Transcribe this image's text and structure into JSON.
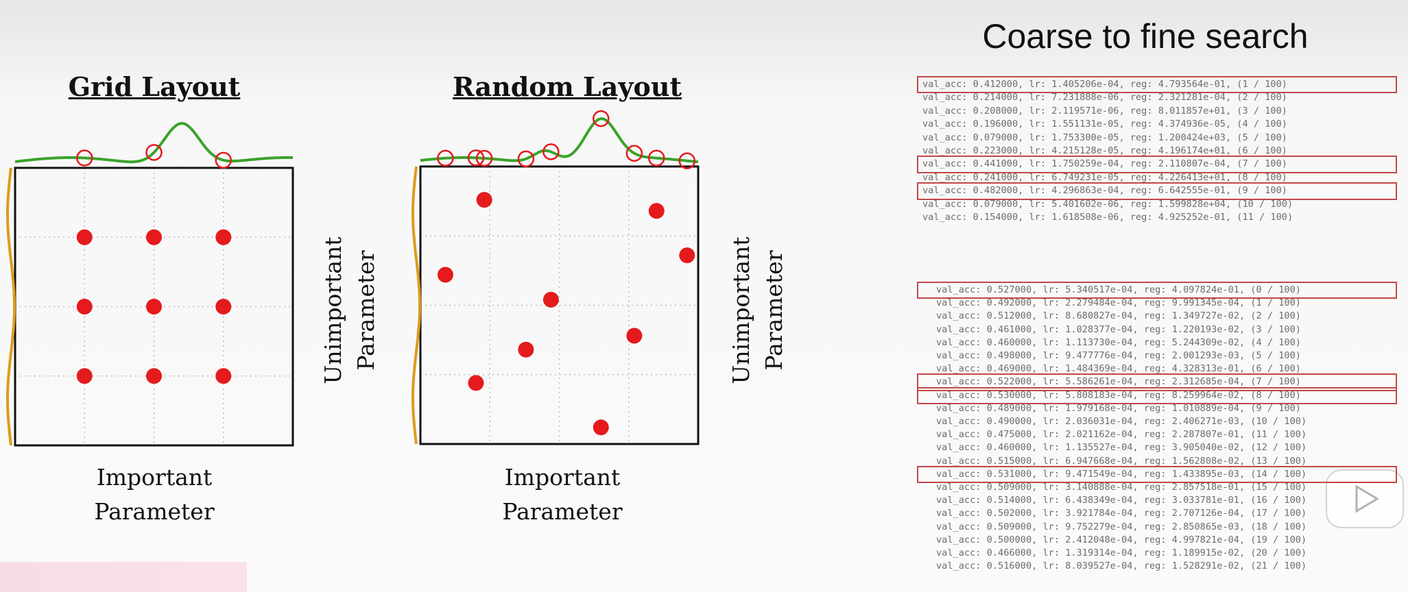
{
  "grid_plot": {
    "title": "Grid Layout",
    "xlabel_line1": "Important",
    "xlabel_line2": "Parameter",
    "ylabel_line1": "Unimportant",
    "ylabel_line2": "Parameter",
    "points": [
      [
        0.25,
        0.25
      ],
      [
        0.5,
        0.25
      ],
      [
        0.75,
        0.25
      ],
      [
        0.25,
        0.5
      ],
      [
        0.5,
        0.5
      ],
      [
        0.75,
        0.5
      ],
      [
        0.25,
        0.75
      ],
      [
        0.5,
        0.75
      ],
      [
        0.75,
        0.75
      ]
    ],
    "top_marks": [
      0.25,
      0.5,
      0.75
    ]
  },
  "random_plot": {
    "title": "Random Layout",
    "xlabel_line1": "Important",
    "xlabel_line2": "Parameter",
    "ylabel_line1": "Unimportant",
    "ylabel_line2": "Parameter",
    "points": [
      [
        0.23,
        0.12
      ],
      [
        0.85,
        0.16
      ],
      [
        0.09,
        0.39
      ],
      [
        0.96,
        0.32
      ],
      [
        0.47,
        0.48
      ],
      [
        0.38,
        0.66
      ],
      [
        0.77,
        0.61
      ],
      [
        0.2,
        0.78
      ],
      [
        0.65,
        0.94
      ]
    ],
    "top_marks": [
      0.09,
      0.2,
      0.23,
      0.38,
      0.47,
      0.65,
      0.77,
      0.85,
      0.96
    ]
  },
  "colors": {
    "point": "#e41a1c",
    "important_curve": "#3aa32a",
    "unimportant_curve": "#e09a1c",
    "highlight": "#c24848"
  },
  "right_panel": {
    "title": "Coarse to fine search",
    "coarse_log": [
      "val_acc: 0.412000, lr: 1.405206e-04, reg: 4.793564e-01, (1 / 100)",
      "val_acc: 0.214000, lr: 7.231888e-06, reg: 2.321281e-04, (2 / 100)",
      "val_acc: 0.208000, lr: 2.119571e-06, reg: 8.011857e+01, (3 / 100)",
      "val_acc: 0.196000, lr: 1.551131e-05, reg: 4.374936e-05, (4 / 100)",
      "val_acc: 0.079000, lr: 1.753300e-05, reg: 1.200424e+03, (5 / 100)",
      "val_acc: 0.223000, lr: 4.215128e-05, reg: 4.196174e+01, (6 / 100)",
      "val_acc: 0.441000, lr: 1.750259e-04, reg: 2.110807e-04, (7 / 100)",
      "val_acc: 0.241000, lr: 6.749231e-05, reg: 4.226413e+01, (8 / 100)",
      "val_acc: 0.482000, lr: 4.296863e-04, reg: 6.642555e-01, (9 / 100)",
      "val_acc: 0.079000, lr: 5.401602e-06, reg: 1.599828e+04, (10 / 100)",
      "val_acc: 0.154000, lr: 1.618508e-06, reg: 4.925252e-01, (11 / 100)"
    ],
    "fine_log": [
      "val_acc: 0.527000, lr: 5.340517e-04, reg: 4.097824e-01, (0 / 100)",
      "val_acc: 0.492000, lr: 2.279484e-04, reg: 9.991345e-04, (1 / 100)",
      "val_acc: 0.512000, lr: 8.680827e-04, reg: 1.349727e-02, (2 / 100)",
      "val_acc: 0.461000, lr: 1.028377e-04, reg: 1.220193e-02, (3 / 100)",
      "val_acc: 0.460000, lr: 1.113730e-04, reg: 5.244309e-02, (4 / 100)",
      "val_acc: 0.498000, lr: 9.477776e-04, reg: 2.001293e-03, (5 / 100)",
      "val_acc: 0.469000, lr: 1.484369e-04, reg: 4.328313e-01, (6 / 100)",
      "val_acc: 0.522000, lr: 5.586261e-04, reg: 2.312685e-04, (7 / 100)",
      "val_acc: 0.530000, lr: 5.808183e-04, reg: 8.259964e-02, (8 / 100)",
      "val_acc: 0.489000, lr: 1.979168e-04, reg: 1.010889e-04, (9 / 100)",
      "val_acc: 0.490000, lr: 2.036031e-04, reg: 2.406271e-03, (10 / 100)",
      "val_acc: 0.475000, lr: 2.021162e-04, reg: 2.287807e-01, (11 / 100)",
      "val_acc: 0.460000, lr: 1.135527e-04, reg: 3.905040e-02, (12 / 100)",
      "val_acc: 0.515000, lr: 6.947668e-04, reg: 1.562808e-02, (13 / 100)",
      "val_acc: 0.531000, lr: 9.471549e-04, reg: 1.433895e-03, (14 / 100)",
      "val_acc: 0.509000, lr: 3.140888e-04, reg: 2.857518e-01, (15 / 100)",
      "val_acc: 0.514000, lr: 6.438349e-04, reg: 3.033781e-01, (16 / 100)",
      "val_acc: 0.502000, lr: 3.921784e-04, reg: 2.707126e-04, (17 / 100)",
      "val_acc: 0.509000, lr: 9.752279e-04, reg: 2.850865e-03, (18 / 100)",
      "val_acc: 0.500000, lr: 2.412048e-04, reg: 4.997821e-04, (19 / 100)",
      "val_acc: 0.466000, lr: 1.319314e-04, reg: 1.189915e-02, (20 / 100)",
      "val_acc: 0.516000, lr: 8.039527e-04, reg: 1.528291e-02, (21 / 100)"
    ],
    "coarse_highlight_rows": [
      0,
      6,
      8
    ],
    "fine_highlight_rows": [
      0,
      7,
      8,
      14
    ]
  },
  "icons": {
    "play": "play-icon"
  }
}
